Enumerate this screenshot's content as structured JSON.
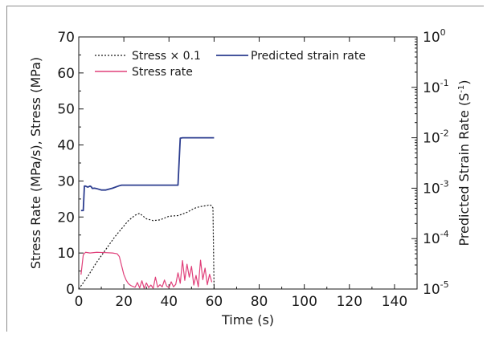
{
  "chart_data": {
    "type": "line",
    "title": "",
    "xlabel": "Time (s)",
    "ylabel_left": "Stress Rate (MPa/s), Stress (MPa)",
    "ylabel_right_prefix": "Predicted Strain Rate (S",
    "ylabel_right_sup": "-1",
    "ylabel_right_suffix": ")",
    "xlim": [
      0,
      150
    ],
    "ylim_left": [
      0,
      70
    ],
    "ylim_right_log": [
      1e-05,
      1
    ],
    "x_ticks": [
      "0",
      "20",
      "40",
      "60",
      "80",
      "100",
      "120",
      "140"
    ],
    "y_left_ticks": [
      "0",
      "10",
      "20",
      "30",
      "40",
      "50",
      "60",
      "70"
    ],
    "y_right_ticks": [
      {
        "base": "10",
        "exp": "-5"
      },
      {
        "base": "10",
        "exp": "-4"
      },
      {
        "base": "10",
        "exp": "-3"
      },
      {
        "base": "10",
        "exp": "-2"
      },
      {
        "base": "10",
        "exp": "-1"
      },
      {
        "base": "10",
        "exp": "0"
      }
    ],
    "grid": false,
    "legend_placement": "top-left",
    "series": [
      {
        "name": "Stress × 0.1",
        "color": "#1a1a1a",
        "dash": true,
        "axis": "left",
        "x": [
          0,
          4,
          8,
          12,
          16,
          20,
          22,
          25,
          27,
          30,
          33,
          36,
          38,
          40,
          42,
          44,
          46,
          48,
          50,
          52,
          54,
          56,
          57,
          58,
          59,
          59.5,
          60
        ],
        "y": [
          0,
          3.5,
          7.5,
          11,
          14.5,
          17.5,
          19,
          20.5,
          21,
          19.5,
          19,
          19.2,
          19.7,
          20.2,
          20.3,
          20.4,
          20.8,
          21.3,
          22,
          22.6,
          22.9,
          23.1,
          23.2,
          23.4,
          23.1,
          22.5,
          0
        ]
      },
      {
        "name": "Stress rate",
        "color": "#e0407a",
        "dash": false,
        "axis": "left",
        "x": [
          1,
          2,
          3,
          5,
          8,
          12,
          15,
          17,
          18,
          19,
          20,
          21,
          22,
          23,
          24,
          25,
          26,
          27,
          28,
          29,
          30,
          31,
          32,
          33,
          34,
          35,
          36,
          37,
          38,
          39,
          40,
          41,
          42,
          43,
          44,
          45,
          46,
          47,
          48,
          49,
          50,
          51,
          52,
          53,
          54,
          55,
          56,
          57,
          58,
          59
        ],
        "y": [
          4,
          9.5,
          10.2,
          10,
          10.2,
          10.1,
          10,
          9.8,
          9,
          6.5,
          4,
          2.5,
          1.5,
          1,
          0.7,
          0.5,
          1.8,
          0.3,
          2.3,
          0.2,
          1.7,
          0.4,
          1.1,
          0.2,
          3.3,
          0.5,
          1.2,
          0.6,
          2.5,
          0.8,
          0.4,
          2,
          0.6,
          1.3,
          4.5,
          1.6,
          7.9,
          2.4,
          6.9,
          3.3,
          6.3,
          1.1,
          3.8,
          0.6,
          8,
          2.6,
          5.8,
          1.2,
          4.1,
          1.9
        ]
      },
      {
        "name": "Predicted strain rate",
        "color": "#2c3d8f",
        "dash": false,
        "axis": "right",
        "x": [
          1,
          2,
          2.5,
          3,
          4,
          5,
          5.5,
          6,
          7,
          8,
          9,
          10,
          12,
          15,
          17,
          18,
          19,
          20,
          25,
          30,
          35,
          40,
          43,
          44,
          45,
          45.5,
          46,
          50,
          55,
          60
        ],
        "y": [
          0.00036,
          0.00036,
          0.0011,
          0.0011,
          0.00105,
          0.0011,
          0.00107,
          0.00099,
          0.001,
          0.00098,
          0.00095,
          0.00092,
          0.00092,
          0.001,
          0.00108,
          0.00112,
          0.00115,
          0.00115,
          0.00115,
          0.00115,
          0.00115,
          0.00115,
          0.00115,
          0.00115,
          0.0098,
          0.0099,
          0.01,
          0.01,
          0.01,
          0.01
        ]
      }
    ]
  }
}
